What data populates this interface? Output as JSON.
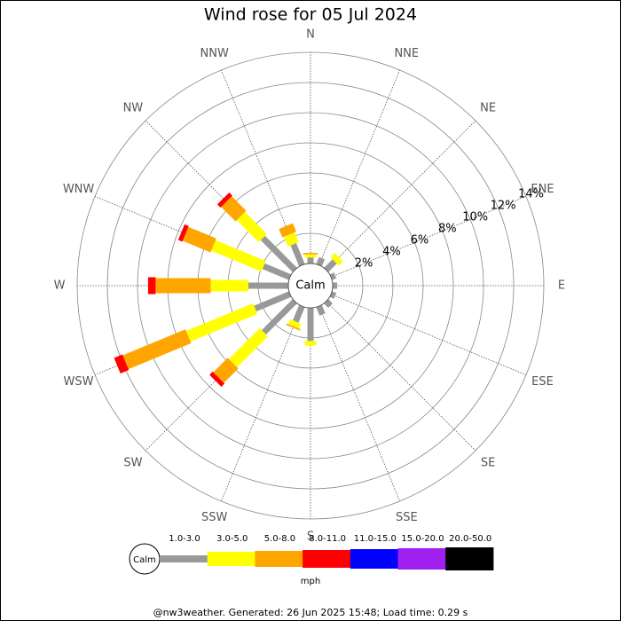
{
  "chart_data": {
    "type": "windrose",
    "title": "Wind rose for 05 Jul 2024",
    "categories": [
      "N",
      "NNE",
      "NE",
      "ENE",
      "E",
      "ESE",
      "SE",
      "SSE",
      "S",
      "SSW",
      "SW",
      "WSW",
      "W",
      "WNW",
      "NW",
      "NNW"
    ],
    "calm_label": "Calm",
    "unit_label": "mph",
    "footer": "@nw3weather. Generated: 26 Jun 2025 15:48; Load time: 0.29 s",
    "ylim": [
      0,
      14
    ],
    "yticks": [
      {
        "value": 2,
        "label": "2%"
      },
      {
        "value": 4,
        "label": "4%"
      },
      {
        "value": 6,
        "label": "6%"
      },
      {
        "value": 8,
        "label": "8%"
      },
      {
        "value": 10,
        "label": "10%"
      },
      {
        "value": 12,
        "label": "12%"
      },
      {
        "value": 14,
        "label": "14%"
      }
    ],
    "series": [
      {
        "name": "1.0-3.0",
        "color": "#999999",
        "values": [
          0.4,
          0.5,
          0.8,
          0.3,
          0.3,
          0.3,
          0.4,
          0.6,
          2.2,
          1.1,
          2.9,
          2.5,
          2.65,
          1.9,
          3.0,
          1.5
        ]
      },
      {
        "name": "3.0-5.0",
        "color": "#ffff00",
        "values": [
          0.2,
          0,
          0.4,
          0,
          0,
          0,
          0,
          0,
          0.3,
          0.35,
          2.9,
          4.8,
          2.5,
          3.6,
          2.06,
          0.7
        ]
      },
      {
        "name": "5.0-8.0",
        "color": "#ffa500",
        "values": [
          0.1,
          0,
          0,
          0,
          0,
          0,
          0,
          0,
          0,
          0.1,
          1.35,
          4.5,
          3.65,
          2.0,
          1.35,
          0.6
        ]
      },
      {
        "name": "8.0-11.0",
        "color": "#ff0000",
        "values": [
          0,
          0,
          0,
          0,
          0,
          0,
          0,
          0,
          0,
          0,
          0.3,
          0.6,
          0.5,
          0.3,
          0.3,
          0
        ]
      },
      {
        "name": "11.0-15.0",
        "color": "#0000ff",
        "values": [
          0,
          0,
          0,
          0,
          0,
          0,
          0,
          0,
          0,
          0,
          0,
          0,
          0,
          0,
          0,
          0
        ]
      },
      {
        "name": "15.0-20.0",
        "color": "#a020f0",
        "values": [
          0,
          0,
          0,
          0,
          0,
          0,
          0,
          0,
          0,
          0,
          0,
          0,
          0,
          0,
          0,
          0
        ]
      },
      {
        "name": "20.0-50.0",
        "color": "#000000",
        "values": [
          0,
          0,
          0,
          0,
          0,
          0,
          0,
          0,
          0,
          0,
          0,
          0,
          0,
          0,
          0,
          0
        ]
      }
    ]
  }
}
